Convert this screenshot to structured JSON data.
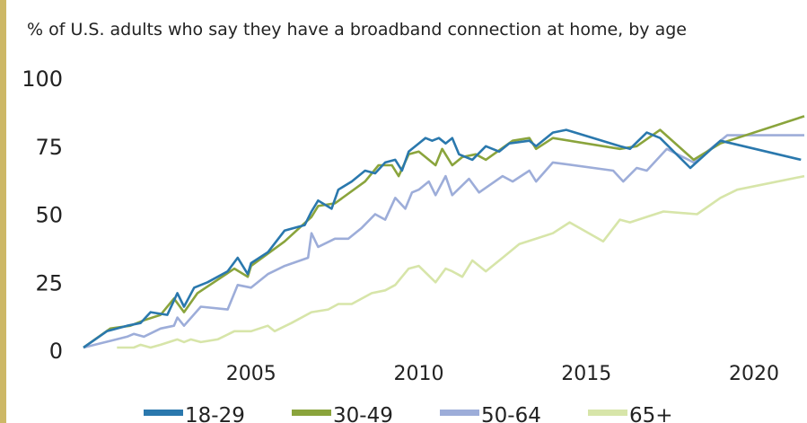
{
  "chart_data": {
    "type": "line",
    "title": "% of U.S. adults who say they have a broadband connection at home, by age",
    "xlim": [
      2000,
      2021.5
    ],
    "ylim": [
      0,
      100
    ],
    "xticks": [
      2005,
      2010,
      2015,
      2020
    ],
    "yticks": [
      0,
      25,
      50,
      75,
      100
    ],
    "grid": false,
    "series": [
      {
        "name": "18-29",
        "color": "#2a78ad",
        "x": [
          2000.0,
          2000.7,
          2001.3,
          2001.7,
          2002.0,
          2002.5,
          2002.8,
          2003.0,
          2003.3,
          2003.7,
          2004.3,
          2004.6,
          2004.9,
          2005.0,
          2005.5,
          2006.0,
          2006.6,
          2006.8,
          2007.0,
          2007.4,
          2007.6,
          2008.0,
          2008.4,
          2008.7,
          2009.0,
          2009.3,
          2009.5,
          2009.7,
          2010.0,
          2010.2,
          2010.4,
          2010.6,
          2010.8,
          2011.0,
          2011.2,
          2011.6,
          2012.0,
          2012.4,
          2012.7,
          2013.3,
          2013.5,
          2014.0,
          2014.4,
          2016.0,
          2016.3,
          2016.8,
          2017.2,
          2018.1,
          2019.0,
          2021.4
        ],
        "values": [
          1,
          7,
          9,
          10,
          14,
          13,
          21,
          16,
          23,
          25,
          29,
          34,
          28,
          32,
          36,
          44,
          46,
          51,
          55,
          52,
          59,
          62,
          66,
          65,
          69,
          70,
          66,
          73,
          76,
          78,
          77,
          78,
          76,
          78,
          72,
          70,
          75,
          73,
          76,
          77,
          75,
          80,
          81,
          75,
          74,
          80,
          78,
          67,
          77,
          70
        ]
      },
      {
        "name": "30-49",
        "color": "#8aa43c",
        "x": [
          2000.0,
          2000.8,
          2001.4,
          2001.8,
          2002.3,
          2002.7,
          2003.0,
          2003.4,
          2004.5,
          2004.9,
          2005.0,
          2006.0,
          2006.8,
          2007.0,
          2007.5,
          2008.4,
          2008.8,
          2009.2,
          2009.4,
          2009.7,
          2010.0,
          2010.3,
          2010.5,
          2010.7,
          2011.0,
          2011.3,
          2011.7,
          2012.0,
          2012.8,
          2013.3,
          2013.5,
          2014.0,
          2016.0,
          2016.5,
          2017.2,
          2018.2,
          2019.0,
          2021.5
        ],
        "values": [
          1,
          8,
          9,
          11,
          13,
          19,
          14,
          21,
          30,
          27,
          31,
          40,
          49,
          53,
          54,
          62,
          68,
          68,
          64,
          72,
          73,
          70,
          68,
          74,
          68,
          71,
          72,
          70,
          77,
          78,
          74,
          78,
          74,
          75,
          81,
          70,
          76,
          86
        ]
      },
      {
        "name": "50-64",
        "color": "#9dadd9",
        "x": [
          2000.0,
          2001.3,
          2001.5,
          2001.8,
          2002.3,
          2002.7,
          2002.8,
          2003.0,
          2003.5,
          2004.3,
          2004.6,
          2005.0,
          2005.5,
          2006.0,
          2006.7,
          2006.8,
          2007.0,
          2007.5,
          2007.9,
          2008.3,
          2008.7,
          2009.0,
          2009.3,
          2009.6,
          2009.8,
          2010.0,
          2010.3,
          2010.5,
          2010.8,
          2011.0,
          2011.5,
          2011.8,
          2012.5,
          2012.8,
          2013.3,
          2013.5,
          2014.0,
          2015.8,
          2016.1,
          2016.5,
          2016.8,
          2017.4,
          2018.2,
          2019.2,
          2021.5
        ],
        "values": [
          1,
          5,
          6,
          5,
          8,
          9,
          12,
          9,
          16,
          15,
          24,
          23,
          28,
          31,
          34,
          43,
          38,
          41,
          41,
          45,
          50,
          48,
          56,
          52,
          58,
          59,
          62,
          57,
          64,
          57,
          63,
          58,
          64,
          62,
          66,
          62,
          69,
          66,
          62,
          67,
          66,
          74,
          69,
          79,
          79
        ]
      },
      {
        "name": "65+",
        "color": "#d7e5a9",
        "x": [
          2001.0,
          2001.5,
          2001.7,
          2002.0,
          2002.3,
          2002.8,
          2003.0,
          2003.2,
          2003.5,
          2004.0,
          2004.5,
          2005.0,
          2005.5,
          2005.7,
          2006.2,
          2006.8,
          2007.3,
          2007.6,
          2008.0,
          2008.6,
          2009.0,
          2009.3,
          2009.7,
          2010.0,
          2010.5,
          2010.8,
          2011.0,
          2011.3,
          2011.6,
          2012.0,
          2012.5,
          2013.0,
          2013.5,
          2014.0,
          2014.5,
          2015.5,
          2016.0,
          2016.3,
          2016.8,
          2017.3,
          2018.3,
          2019.0,
          2019.5,
          2021.5
        ],
        "values": [
          1,
          1,
          2,
          1,
          2,
          4,
          3,
          4,
          3,
          4,
          7,
          7,
          9,
          7,
          10,
          14,
          15,
          17,
          17,
          21,
          22,
          24,
          30,
          31,
          25,
          30,
          29,
          27,
          33,
          29,
          34,
          39,
          41,
          43,
          47,
          40,
          48,
          47,
          49,
          51,
          50,
          56,
          59,
          64
        ]
      }
    ]
  }
}
